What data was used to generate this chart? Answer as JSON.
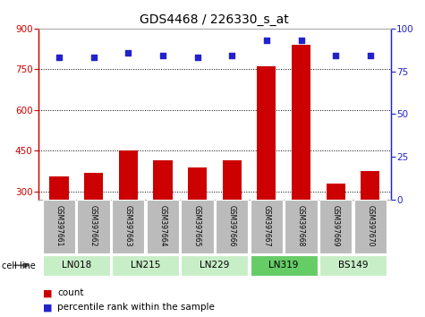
{
  "title": "GDS4468 / 226330_s_at",
  "samples": [
    "GSM397661",
    "GSM397662",
    "GSM397663",
    "GSM397664",
    "GSM397665",
    "GSM397666",
    "GSM397667",
    "GSM397668",
    "GSM397669",
    "GSM397670"
  ],
  "counts": [
    355,
    370,
    450,
    415,
    390,
    415,
    760,
    840,
    330,
    375
  ],
  "percentile_ranks": [
    83,
    83,
    86,
    84,
    83,
    84,
    93,
    93,
    84,
    84
  ],
  "cell_lines": [
    {
      "name": "LN018",
      "start": 0,
      "end": 1,
      "color": "#c8eec8"
    },
    {
      "name": "LN215",
      "start": 2,
      "end": 3,
      "color": "#c8eec8"
    },
    {
      "name": "LN229",
      "start": 4,
      "end": 5,
      "color": "#c8eec8"
    },
    {
      "name": "LN319",
      "start": 6,
      "end": 7,
      "color": "#66cc66"
    },
    {
      "name": "BS149",
      "start": 8,
      "end": 9,
      "color": "#c8eec8"
    }
  ],
  "ylim_left": [
    270,
    900
  ],
  "ylim_right": [
    0,
    100
  ],
  "yticks_left": [
    300,
    450,
    600,
    750,
    900
  ],
  "yticks_right": [
    0,
    25,
    50,
    75,
    100
  ],
  "bar_color": "#cc0000",
  "dot_color": "#2222cc",
  "grid_color": "#000000",
  "bar_bottom": 270,
  "left_axis_color": "#cc0000",
  "right_axis_color": "#2222cc",
  "plot_bg_color": "#ffffff",
  "label_bg_color": "#bbbbbb",
  "legend_count_color": "#cc0000",
  "legend_pct_color": "#2222cc",
  "bar_width": 0.55
}
